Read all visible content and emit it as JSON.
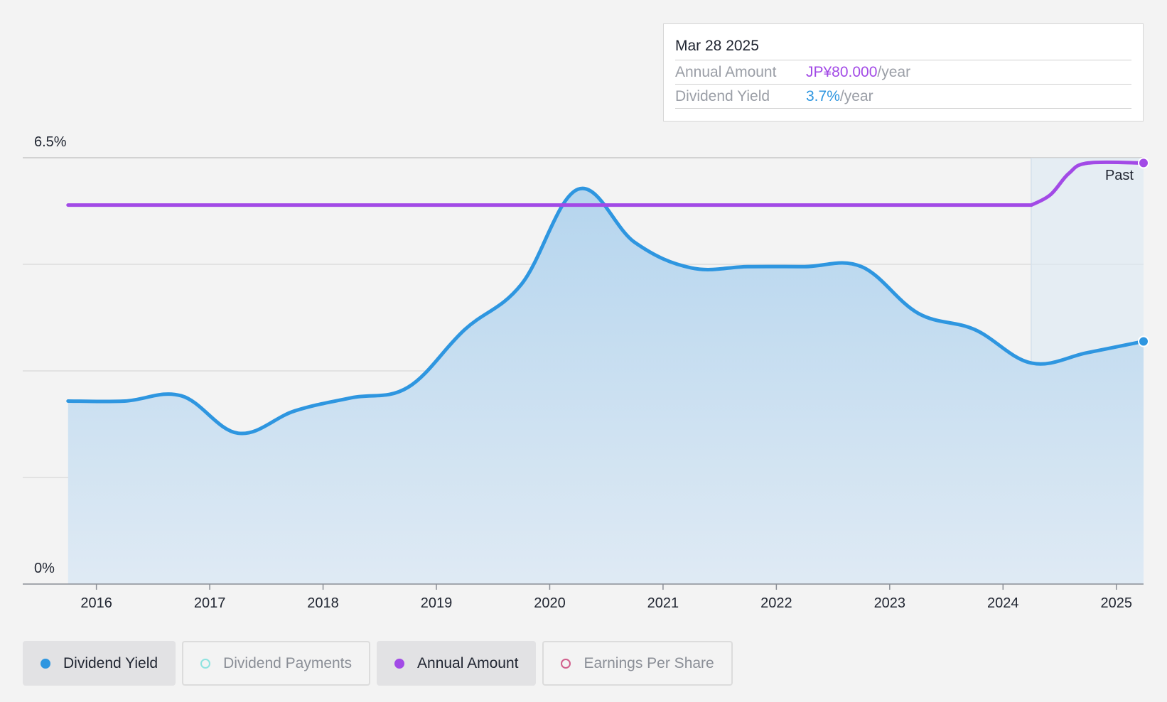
{
  "tooltip": {
    "date": "Mar 28 2025",
    "annual_label": "Annual Amount",
    "annual_value": "JP¥80.000",
    "annual_unit": "/year",
    "yield_label": "Dividend Yield",
    "yield_value": "3.7%",
    "yield_unit": "/year"
  },
  "legend": [
    {
      "label": "Dividend Yield",
      "active": true,
      "color": "#2e96e0",
      "filled": true
    },
    {
      "label": "Dividend Payments",
      "active": false,
      "color": "#8ee3e0",
      "filled": false
    },
    {
      "label": "Annual Amount",
      "active": true,
      "color": "#a24ae6",
      "filled": true
    },
    {
      "label": "Earnings Per Share",
      "active": false,
      "color": "#d15f8c",
      "filled": false
    }
  ],
  "colors": {
    "yield": "#2e96e0",
    "amount": "#a24ae6",
    "area_top": "#b5d5ee",
    "area_bottom": "#dfeaf4"
  },
  "chart_data": {
    "type": "line",
    "x_ticks": [
      "2016",
      "2017",
      "2018",
      "2019",
      "2020",
      "2021",
      "2022",
      "2023",
      "2024",
      "2025"
    ],
    "y_tick_labels": [
      "6.5%",
      "0%"
    ],
    "ylim": [
      0,
      6.5
    ],
    "xlim": [
      2015.35,
      2025.24
    ],
    "past_label": "Past",
    "past_start": 2024.25,
    "series": [
      {
        "name": "Dividend Yield",
        "unit": "%",
        "x": [
          2015.75,
          2016.25,
          2016.75,
          2017.25,
          2017.75,
          2018.25,
          2018.75,
          2019.25,
          2019.75,
          2020.25,
          2020.75,
          2021.25,
          2021.75,
          2022.25,
          2022.75,
          2023.25,
          2023.75,
          2024.25,
          2024.75,
          2025.24
        ],
        "values": [
          2.79,
          2.79,
          2.87,
          2.3,
          2.64,
          2.84,
          3.0,
          3.88,
          4.57,
          6.02,
          5.21,
          4.82,
          4.84,
          4.84,
          4.84,
          4.13,
          3.88,
          3.37,
          3.53,
          3.7
        ]
      },
      {
        "name": "Annual Amount",
        "unit": "JP¥",
        "x": [
          2015.75,
          2024.25,
          2024.42,
          2024.58,
          2024.75,
          2025.24
        ],
        "values": [
          72.0,
          72.0,
          74.0,
          78.0,
          80.0,
          80.0
        ],
        "ylim": [
          0,
          81.0
        ]
      }
    ]
  }
}
